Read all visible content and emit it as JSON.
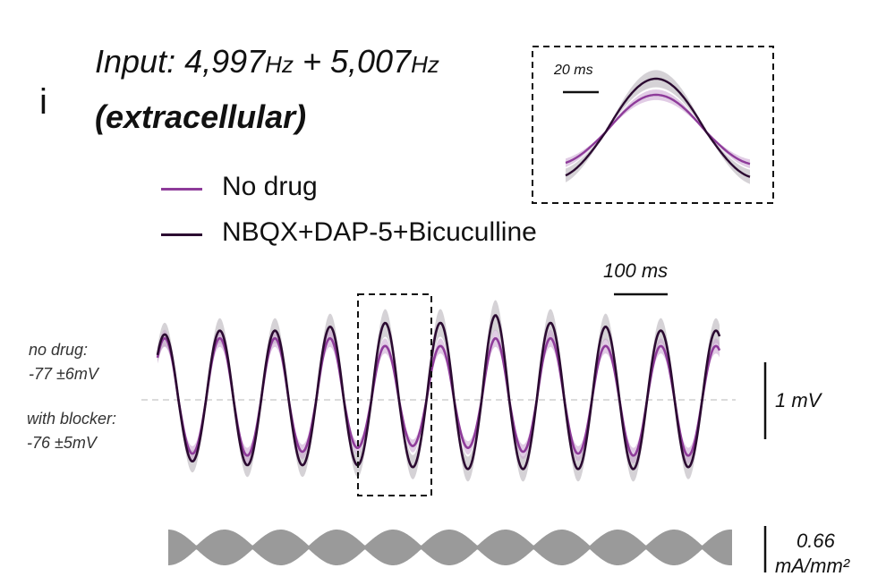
{
  "figure": {
    "panel_letter": "i",
    "title_prefix": "Input: 4,997",
    "title_unit1": "Hz",
    "title_plus": " + 5,007",
    "title_unit2": "Hz",
    "subtitle": "(extracellular)"
  },
  "legend": [
    {
      "label": "No drug",
      "color": "#8e3b9a"
    },
    {
      "label": "NBQX+DAP-5+Bicuculline",
      "color": "#2b0a31"
    }
  ],
  "annotations": {
    "no_drug_label": "no drug:",
    "no_drug_value": "-77 ±6mV",
    "blocker_label": "with blocker:",
    "blocker_value": "-76 ±5mV"
  },
  "scale_bars": {
    "time_main": "100 ms",
    "time_inset": "20 ms",
    "voltage": "1 mV",
    "current_value": "0.66",
    "current_unit": "mA/mm²"
  },
  "chart_data": {
    "type": "line",
    "beat_frequency_hz": 10,
    "peaks": {
      "no_drug": [
        0.8,
        0.8,
        0.8,
        0.8,
        0.7,
        0.7,
        0.8,
        0.8,
        0.7,
        0.7,
        0.7
      ],
      "blocker": [
        0.85,
        0.9,
        0.9,
        0.95,
        1.0,
        1.0,
        1.1,
        1.0,
        0.95,
        0.9,
        0.9
      ]
    },
    "troughs": {
      "no_drug": [
        -0.65,
        -0.75,
        -0.7,
        -0.65,
        -0.6,
        -0.6,
        -0.65,
        -0.7,
        -0.7,
        -0.75,
        -0.7
      ],
      "blocker": [
        -0.75,
        -0.85,
        -0.85,
        -0.85,
        -0.85,
        -0.9,
        -0.9,
        -0.9,
        -0.9,
        -0.9,
        -0.85
      ]
    },
    "colors": {
      "no_drug": "#8e3b9a",
      "no_drug_band": "#c9a2d0",
      "blocker": "#2b0a31",
      "blocker_band": "#b9b4ba",
      "stimulus": "#9a9a9a",
      "baseline": "#cfcfcf"
    }
  }
}
